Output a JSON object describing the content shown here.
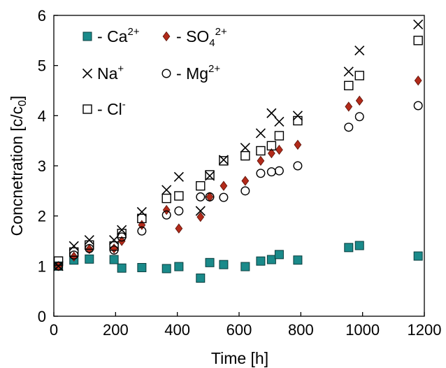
{
  "chart_data": {
    "type": "scatter",
    "title": "",
    "xlabel": "Time [h]",
    "ylabel": "Concnetration [c/c0]",
    "ylabel_parts": {
      "main": "Concnetration [c/c",
      "sub": "0",
      "end": "]"
    },
    "xlim": [
      0,
      1200
    ],
    "ylim": [
      0,
      6
    ],
    "xticks": [
      "0",
      "200",
      "400",
      "600",
      "800",
      "1000",
      "1200"
    ],
    "yticks": [
      "0",
      "1",
      "2",
      "3",
      "4",
      "5",
      "6"
    ],
    "grid": false,
    "legend_position": "top-left",
    "series": [
      {
        "key": "ca",
        "name": "Ca2+",
        "label_parts": {
          "dash": "- ",
          "base": "Ca",
          "sup": "2+",
          "sub": ""
        },
        "marker": "square-filled",
        "color": "#1a8a8a",
        "points": [
          [
            15,
            1.0
          ],
          [
            65,
            1.12
          ],
          [
            115,
            1.14
          ],
          [
            195,
            1.13
          ],
          [
            220,
            0.96
          ],
          [
            285,
            0.97
          ],
          [
            365,
            0.95
          ],
          [
            405,
            0.99
          ],
          [
            475,
            0.76
          ],
          [
            505,
            1.07
          ],
          [
            550,
            1.03
          ],
          [
            620,
            0.99
          ],
          [
            670,
            1.1
          ],
          [
            705,
            1.13
          ],
          [
            730,
            1.23
          ],
          [
            790,
            1.12
          ],
          [
            955,
            1.37
          ],
          [
            990,
            1.41
          ],
          [
            1180,
            1.2
          ]
        ]
      },
      {
        "key": "so4",
        "name": "SO42+",
        "label_parts": {
          "dash": "- ",
          "base": "SO",
          "sub": "4",
          "sup": "2+"
        },
        "marker": "diamond-filled",
        "color": "#b22a1a",
        "points": [
          [
            15,
            1.0
          ],
          [
            65,
            1.19
          ],
          [
            115,
            1.34
          ],
          [
            195,
            1.35
          ],
          [
            220,
            1.5
          ],
          [
            285,
            1.82
          ],
          [
            365,
            2.12
          ],
          [
            405,
            1.75
          ],
          [
            475,
            1.98
          ],
          [
            505,
            2.38
          ],
          [
            550,
            2.6
          ],
          [
            620,
            2.7
          ],
          [
            670,
            3.1
          ],
          [
            705,
            3.25
          ],
          [
            730,
            3.32
          ],
          [
            790,
            3.42
          ],
          [
            955,
            4.18
          ],
          [
            990,
            4.3
          ],
          [
            1180,
            4.7
          ]
        ]
      },
      {
        "key": "na",
        "name": "Na+",
        "label_parts": {
          "dash": "",
          "base": "Na",
          "sup": "+",
          "sub": ""
        },
        "marker": "cross",
        "color": "#000000",
        "points": [
          [
            15,
            1.0
          ],
          [
            65,
            1.4
          ],
          [
            115,
            1.52
          ],
          [
            195,
            1.52
          ],
          [
            220,
            1.72
          ],
          [
            285,
            2.08
          ],
          [
            365,
            2.52
          ],
          [
            405,
            2.78
          ],
          [
            475,
            2.1
          ],
          [
            505,
            2.8
          ],
          [
            550,
            3.12
          ],
          [
            620,
            3.36
          ],
          [
            670,
            3.65
          ],
          [
            705,
            4.05
          ],
          [
            730,
            3.88
          ],
          [
            790,
            4.0
          ],
          [
            955,
            4.88
          ],
          [
            990,
            5.3
          ],
          [
            1180,
            5.82
          ]
        ]
      },
      {
        "key": "mg",
        "name": "Mg2+",
        "label_parts": {
          "dash": "- ",
          "base": "Mg",
          "sup": "2+",
          "sub": ""
        },
        "marker": "circle-open",
        "color": "#000000",
        "points": [
          [
            15,
            1.0
          ],
          [
            65,
            1.22
          ],
          [
            115,
            1.35
          ],
          [
            195,
            1.32
          ],
          [
            220,
            1.58
          ],
          [
            285,
            1.7
          ],
          [
            365,
            2.02
          ],
          [
            405,
            2.1
          ],
          [
            475,
            2.38
          ],
          [
            505,
            2.38
          ],
          [
            550,
            2.37
          ],
          [
            620,
            2.5
          ],
          [
            670,
            2.85
          ],
          [
            705,
            2.88
          ],
          [
            730,
            2.9
          ],
          [
            790,
            3.0
          ],
          [
            955,
            3.77
          ],
          [
            990,
            3.98
          ],
          [
            1180,
            4.2
          ]
        ]
      },
      {
        "key": "cl",
        "name": "Cl-",
        "label_parts": {
          "dash": "- ",
          "base": "Cl",
          "sup": "-",
          "sub": ""
        },
        "marker": "square-open",
        "color": "#000000",
        "points": [
          [
            15,
            1.1
          ],
          [
            65,
            1.28
          ],
          [
            115,
            1.42
          ],
          [
            195,
            1.4
          ],
          [
            220,
            1.65
          ],
          [
            285,
            1.95
          ],
          [
            365,
            2.35
          ],
          [
            405,
            2.4
          ],
          [
            475,
            2.6
          ],
          [
            505,
            2.82
          ],
          [
            550,
            3.1
          ],
          [
            620,
            3.2
          ],
          [
            670,
            3.3
          ],
          [
            705,
            3.4
          ],
          [
            730,
            3.6
          ],
          [
            790,
            3.9
          ],
          [
            955,
            4.6
          ],
          [
            990,
            4.8
          ],
          [
            1180,
            5.5
          ]
        ]
      }
    ]
  }
}
